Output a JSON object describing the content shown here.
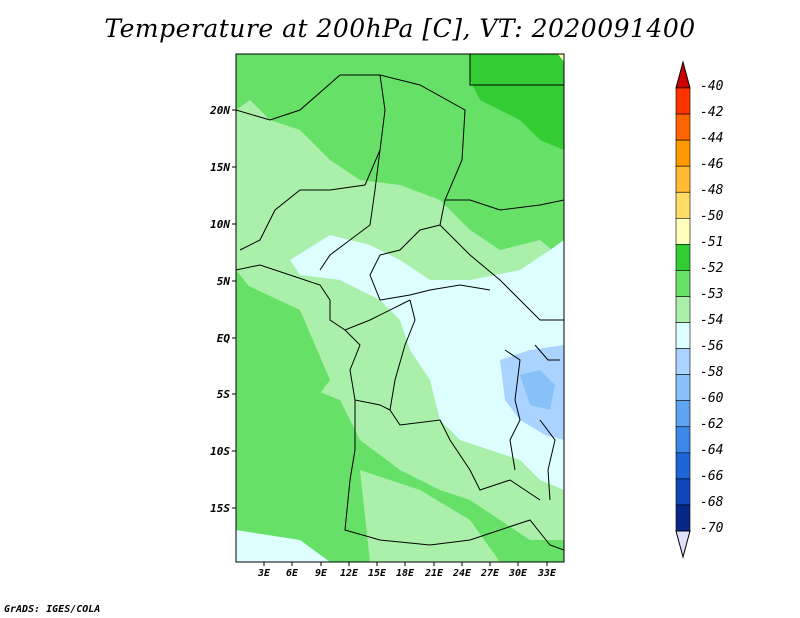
{
  "title": "Temperature at 200hPa [C], VT: 2020091400",
  "credit": "GrADS: IGES/COLA",
  "lat_ticks": [
    "20N",
    "15N",
    "10N",
    "5N",
    "EQ",
    "5S",
    "10S",
    "15S"
  ],
  "lon_ticks": [
    "3E",
    "6E",
    "9E",
    "12E",
    "15E",
    "18E",
    "21E",
    "24E",
    "27E",
    "30E",
    "33E"
  ],
  "legend": {
    "labels": [
      "-40",
      "-42",
      "-44",
      "-46",
      "-48",
      "-50",
      "-51",
      "-52",
      "-53",
      "-54",
      "-56",
      "-58",
      "-60",
      "-62",
      "-64",
      "-66",
      "-68",
      "-70"
    ],
    "colors": [
      "#c00000",
      "#ff3300",
      "#ff6600",
      "#ff9900",
      "#ffbb33",
      "#ffdd66",
      "#ffffbb",
      "#33cc33",
      "#66e066",
      "#aaf0aa",
      "#ddffff",
      "#aad4ff",
      "#88c0f8",
      "#5ea4f0",
      "#3c88e8",
      "#1e66d8",
      "#0e46b8",
      "#082888",
      "#000055"
    ],
    "top_color": "#cc0000",
    "bottom_color": "#e0e0f8"
  },
  "colors": {
    "c51": "#33cc33",
    "c52": "#66e066",
    "c53": "#aaf0aa",
    "c54": "#ddffff",
    "c56": "#aad4ff",
    "c58": "#88c0f8",
    "c50": "#ffffbb"
  }
}
